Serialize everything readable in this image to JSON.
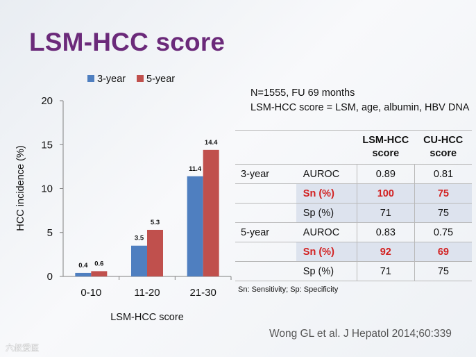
{
  "slide": {
    "title": "LSM-HCC score",
    "info_line1": "N=1555, FU 69 months",
    "info_line2": "LSM-HCC score = LSM, age, albumin, HBV DNA",
    "footnote": "Sn: Sensitivity; Sp: Specificity",
    "citation": "Wong GL et al. J Hepatol 2014;60:339",
    "watermark": "六叔爱医"
  },
  "chart_data": {
    "type": "bar",
    "categories": [
      "0-10",
      "11-20",
      "21-30"
    ],
    "series": [
      {
        "name": "3-year",
        "color": "#4f7fc0",
        "values": [
          0.4,
          3.5,
          11.4
        ],
        "labels": [
          "0.4",
          "3.5",
          "11.4"
        ]
      },
      {
        "name": "5-year",
        "color": "#c0504d",
        "values": [
          0.6,
          5.3,
          14.4
        ],
        "labels": [
          "0.6",
          "5.3",
          "14.4"
        ]
      }
    ],
    "ylim": [
      0,
      20
    ],
    "yticks": [
      0,
      5,
      10,
      15,
      20
    ],
    "ylabel": "HCC incidence (%)",
    "xlabel": "LSM-HCC score",
    "legend": "top",
    "grid": false
  },
  "table": {
    "headers": [
      [
        "",
        ""
      ],
      [
        "",
        ""
      ],
      [
        "LSM-HCC",
        "score"
      ],
      [
        "CU-HCC",
        "score"
      ]
    ],
    "rows": [
      {
        "period": "3-year",
        "metric": "AUROC",
        "lsm": "0.89",
        "cu": "0.81",
        "shaded": false,
        "red": false
      },
      {
        "period": "",
        "metric": "Sn (%)",
        "lsm": "100",
        "cu": "75",
        "shaded": true,
        "red": true
      },
      {
        "period": "",
        "metric": "Sp (%)",
        "lsm": "71",
        "cu": "75",
        "shaded": true,
        "red": false
      },
      {
        "period": "5-year",
        "metric": "AUROC",
        "lsm": "0.83",
        "cu": "0.75",
        "shaded": false,
        "red": false
      },
      {
        "period": "",
        "metric": "Sn (%)",
        "lsm": "92",
        "cu": "69",
        "shaded": true,
        "red": true
      },
      {
        "period": "",
        "metric": "Sp (%)",
        "lsm": "71",
        "cu": "75",
        "shaded": false,
        "red": false
      }
    ]
  }
}
